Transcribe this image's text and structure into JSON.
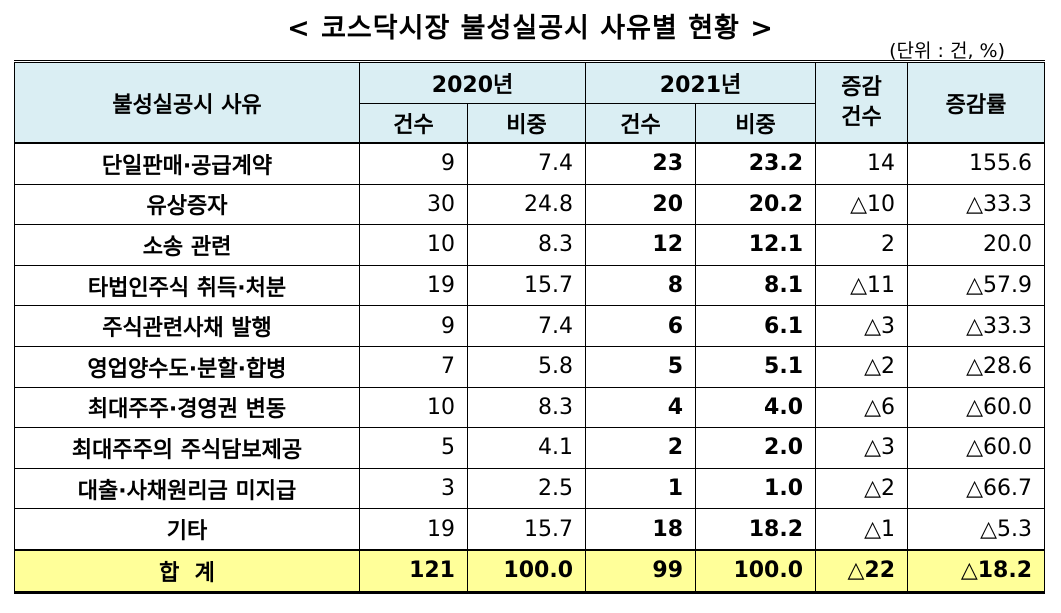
{
  "title": "< 코스닥시장 불성실공시 사유별 현황 >",
  "unit": "(단위 : 건, %)",
  "headers": {
    "reason": "불성실공시 사유",
    "y2020": "2020년",
    "y2021": "2021년",
    "count": "건수",
    "ratio": "비중",
    "change_count": "증감\n건수",
    "change_rate": "증감률"
  },
  "rows": [
    {
      "reason": "단일판매·공급계약",
      "c2020": "9",
      "r2020": "7.4",
      "c2021": "23",
      "r2021": "23.2",
      "dc": "14",
      "dr": "155.6"
    },
    {
      "reason": "유상증자",
      "c2020": "30",
      "r2020": "24.8",
      "c2021": "20",
      "r2021": "20.2",
      "dc": "△10",
      "dr": "△33.3"
    },
    {
      "reason": "소송 관련",
      "c2020": "10",
      "r2020": "8.3",
      "c2021": "12",
      "r2021": "12.1",
      "dc": "2",
      "dr": "20.0"
    },
    {
      "reason": "타법인주식 취득·처분",
      "c2020": "19",
      "r2020": "15.7",
      "c2021": "8",
      "r2021": "8.1",
      "dc": "△11",
      "dr": "△57.9"
    },
    {
      "reason": "주식관련사채 발행",
      "c2020": "9",
      "r2020": "7.4",
      "c2021": "6",
      "r2021": "6.1",
      "dc": "△3",
      "dr": "△33.3"
    },
    {
      "reason": "영업양수도·분할·합병",
      "c2020": "7",
      "r2020": "5.8",
      "c2021": "5",
      "r2021": "5.1",
      "dc": "△2",
      "dr": "△28.6"
    },
    {
      "reason": "최대주주·경영권 변동",
      "c2020": "10",
      "r2020": "8.3",
      "c2021": "4",
      "r2021": "4.0",
      "dc": "△6",
      "dr": "△60.0"
    },
    {
      "reason": "최대주주의 주식담보제공",
      "c2020": "5",
      "r2020": "4.1",
      "c2021": "2",
      "r2021": "2.0",
      "dc": "△3",
      "dr": "△60.0"
    },
    {
      "reason": "대출·사채원리금 미지급",
      "c2020": "3",
      "r2020": "2.5",
      "c2021": "1",
      "r2021": "1.0",
      "dc": "△2",
      "dr": "△66.7"
    },
    {
      "reason": "기타",
      "c2020": "19",
      "r2020": "15.7",
      "c2021": "18",
      "r2021": "18.2",
      "dc": "△1",
      "dr": "△5.3"
    }
  ],
  "total": {
    "reason": "합  계",
    "c2020": "121",
    "r2020": "100.0",
    "c2021": "99",
    "r2021": "100.0",
    "dc": "△22",
    "dr": "△18.2"
  },
  "colors": {
    "header_bg": "#daeef3",
    "total_bg": "#ffff99"
  }
}
